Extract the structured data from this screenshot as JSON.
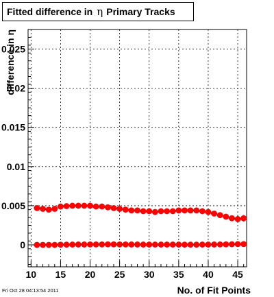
{
  "title": {
    "prefix": "Fitted difference in",
    "symbol": "η",
    "suffix": "Primary Tracks"
  },
  "footer_timestamp": "Fri Oct 28 04:13:54 2011",
  "chart_data": {
    "type": "scatter",
    "xlabel": "No. of Fit Points",
    "ylabel": "difference in η",
    "xlim": [
      9.5,
      46.5
    ],
    "ylim": [
      -0.0028,
      0.0275
    ],
    "x_ticks": [
      10,
      15,
      20,
      25,
      30,
      35,
      40,
      45
    ],
    "x_tick_labels": [
      "10",
      "15",
      "20",
      "25",
      "30",
      "35",
      "40",
      "45"
    ],
    "y_ticks": [
      0,
      0.005,
      0.01,
      0.015,
      0.02,
      0.025
    ],
    "y_tick_labels": [
      "0",
      "0.005",
      "0.01",
      "0.015",
      "0.02",
      "0.025"
    ],
    "grid": true,
    "colors": {
      "marker": "#ff0000",
      "errorbar": "#000000"
    },
    "x": [
      11,
      12,
      13,
      14,
      15,
      16,
      17,
      18,
      19,
      20,
      21,
      22,
      23,
      24,
      25,
      26,
      27,
      28,
      29,
      30,
      31,
      32,
      33,
      34,
      35,
      36,
      37,
      38,
      39,
      40,
      41,
      42,
      43,
      44,
      45,
      46
    ],
    "series": [
      {
        "values": [
          0.0047,
          0.0046,
          0.0045,
          0.0046,
          0.0049,
          0.00495,
          0.005,
          0.005,
          0.005,
          0.005,
          0.0049,
          0.0049,
          0.0048,
          0.0047,
          0.0046,
          0.0045,
          0.0044,
          0.0044,
          0.0043,
          0.0043,
          0.0042,
          0.0043,
          0.0043,
          0.0043,
          0.0044,
          0.0044,
          0.0044,
          0.0044,
          0.0043,
          0.0042,
          0.004,
          0.0038,
          0.0036,
          0.0034,
          0.0033,
          0.0034
        ],
        "errors": [
          0.0002,
          0.0002,
          0.0002,
          0.0002,
          0.0002,
          0.0002,
          0.0002,
          0.0002,
          0.0002,
          0.0002,
          0.0002,
          0.0002,
          0.0002,
          0.0002,
          0.0002,
          0.0002,
          0.0002,
          0.0002,
          0.0002,
          0.0002,
          0.0002,
          0.0002,
          0.0002,
          0.0002,
          0.0002,
          0.0002,
          0.0002,
          0.0002,
          0.0002,
          0.0002,
          0.0002,
          0.0003,
          0.0003,
          0.0003,
          0.0004,
          0.0004
        ]
      },
      {
        "values": [
          0.0,
          0.0,
          0.0,
          0.0,
          2e-05,
          3e-05,
          4e-05,
          5e-05,
          5e-05,
          6e-05,
          6e-05,
          6e-05,
          7e-05,
          7e-05,
          6e-05,
          6e-05,
          5e-05,
          5e-05,
          4e-05,
          4e-05,
          4e-05,
          4e-05,
          4e-05,
          4e-05,
          4e-05,
          3e-05,
          3e-05,
          3e-05,
          4e-05,
          4e-05,
          5e-05,
          6e-05,
          7e-05,
          8e-05,
          0.0001,
          0.0001
        ],
        "errors": [
          0.0001,
          0.0001,
          0.0001,
          0.0001,
          0.0001,
          0.0001,
          0.0001,
          0.0001,
          0.0001,
          0.0001,
          0.0001,
          0.0001,
          0.0001,
          0.0001,
          0.0001,
          0.0001,
          0.0001,
          0.0001,
          0.0001,
          0.0001,
          0.0001,
          0.0001,
          0.0001,
          0.0001,
          0.0001,
          0.0001,
          0.0001,
          0.0001,
          0.0001,
          0.0001,
          0.0001,
          0.0001,
          0.0001,
          0.0001,
          0.0001,
          0.0001
        ]
      }
    ]
  }
}
